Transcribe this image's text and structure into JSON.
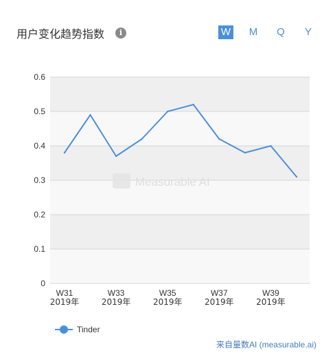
{
  "header": {
    "title": "用户变化趋势指数",
    "info_icon": "info-icon",
    "periods": [
      "W",
      "M",
      "Q",
      "Y"
    ],
    "active_period": "W"
  },
  "watermark": "Measurable AI",
  "source_note": "来自量数AI (measurable.ai)",
  "colors": {
    "series": "#4a90d9",
    "band_dark": "#efefef",
    "band_light": "#f8f8f8",
    "grid": "#d6d6d6"
  },
  "chart_data": {
    "type": "line",
    "x": [
      "W31",
      "W32",
      "W33",
      "W34",
      "W35",
      "W36",
      "W37",
      "W38",
      "W39",
      "W40"
    ],
    "x_tick_labels": [
      {
        "week": "W31",
        "year": "2019年"
      },
      {
        "week": "W33",
        "year": "2019年"
      },
      {
        "week": "W35",
        "year": "2019年"
      },
      {
        "week": "W37",
        "year": "2019年"
      },
      {
        "week": "W39",
        "year": "2019年"
      }
    ],
    "series": [
      {
        "name": "Tinder",
        "values": [
          0.38,
          0.49,
          0.37,
          0.42,
          0.5,
          0.52,
          0.42,
          0.38,
          0.4,
          0.31
        ]
      }
    ],
    "y_ticks": [
      "0",
      "0.1",
      "0.2",
      "0.3",
      "0.4",
      "0.5",
      "0.6"
    ],
    "ylim": [
      0,
      0.6
    ],
    "grid": true,
    "legend_position": "bottom-left"
  }
}
